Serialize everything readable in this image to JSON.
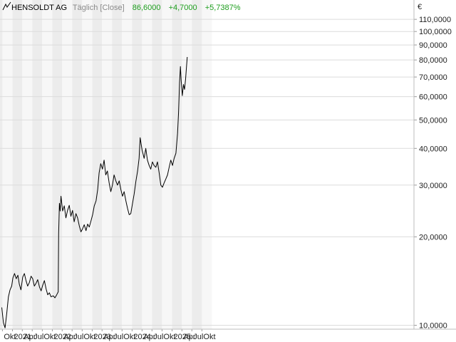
{
  "header": {
    "instrument": "HENSOLDT AG",
    "period_type": "Täglich [Close]",
    "last_price": "86,6000",
    "change_abs": "+4,7000",
    "change_pct": "+5,7387%"
  },
  "colors": {
    "line": "#000000",
    "positive": "#1e9e1e",
    "muted": "#8a8a8a",
    "band_dark": "#ececec",
    "band_light": "#f7f7f7",
    "grid": "#dcdcdc"
  },
  "chart_data": {
    "type": "line",
    "title": "HENSOLDT AG",
    "y_unit": "€",
    "y_scale": "log",
    "ylim": [
      9.7,
      128
    ],
    "x_ticks": [
      "Okt",
      "2021",
      "Apr",
      "Jul",
      "Okt",
      "2022",
      "Apr",
      "Jul",
      "Okt",
      "2023",
      "Apr",
      "Jul",
      "Okt",
      "2024",
      "Apr",
      "Jul",
      "Okt",
      "2025",
      "Apr",
      "Jul",
      "Okt"
    ],
    "y_ticks": [
      {
        "value": 110,
        "label": "110,0000"
      },
      {
        "value": 100,
        "label": "100,0000"
      },
      {
        "value": 90,
        "label": "90,0000"
      },
      {
        "value": 80,
        "label": "80,0000"
      },
      {
        "value": 70,
        "label": "70,0000"
      },
      {
        "value": 60,
        "label": "60,0000"
      },
      {
        "value": 50,
        "label": "50,0000"
      },
      {
        "value": 40,
        "label": "40,0000"
      },
      {
        "value": 30,
        "label": "30,0000"
      },
      {
        "value": 20,
        "label": "20,0000"
      },
      {
        "value": 10,
        "label": "10,0000"
      }
    ],
    "grid": true,
    "series": [
      {
        "points": [
          [
            "2020-09-25",
            11.5
          ],
          [
            "2020-10-10",
            10.2
          ],
          [
            "2020-10-25",
            9.8
          ],
          [
            "2020-11-10",
            11.0
          ],
          [
            "2020-11-25",
            12.5
          ],
          [
            "2020-12-10",
            13.2
          ],
          [
            "2020-12-25",
            13.6
          ],
          [
            "2021-01-05",
            14.5
          ],
          [
            "2021-01-20",
            15.0
          ],
          [
            "2021-02-05",
            14.4
          ],
          [
            "2021-02-20",
            14.8
          ],
          [
            "2021-03-05",
            13.8
          ],
          [
            "2021-03-20",
            13.2
          ],
          [
            "2021-04-05",
            14.6
          ],
          [
            "2021-04-20",
            15.0
          ],
          [
            "2021-05-05",
            14.2
          ],
          [
            "2021-05-20",
            13.6
          ],
          [
            "2021-06-05",
            14.0
          ],
          [
            "2021-06-20",
            14.7
          ],
          [
            "2021-07-05",
            14.4
          ],
          [
            "2021-07-20",
            13.6
          ],
          [
            "2021-08-05",
            13.9
          ],
          [
            "2021-08-20",
            14.3
          ],
          [
            "2021-09-05",
            13.5
          ],
          [
            "2021-09-20",
            13.1
          ],
          [
            "2021-10-05",
            13.7
          ],
          [
            "2021-10-20",
            14.2
          ],
          [
            "2021-11-05",
            13.3
          ],
          [
            "2021-11-20",
            12.7
          ],
          [
            "2021-12-05",
            12.9
          ],
          [
            "2021-12-20",
            12.5
          ],
          [
            "2022-01-10",
            12.6
          ],
          [
            "2022-01-25",
            12.4
          ],
          [
            "2022-02-10",
            12.7
          ],
          [
            "2022-02-24",
            13.0
          ],
          [
            "2022-02-28",
            20.5
          ],
          [
            "2022-03-07",
            26.0
          ],
          [
            "2022-03-14",
            24.5
          ],
          [
            "2022-03-21",
            27.5
          ],
          [
            "2022-04-05",
            24.5
          ],
          [
            "2022-04-20",
            25.5
          ],
          [
            "2022-05-05",
            23.2
          ],
          [
            "2022-05-20",
            24.6
          ],
          [
            "2022-06-05",
            25.6
          ],
          [
            "2022-06-20",
            23.5
          ],
          [
            "2022-07-05",
            24.6
          ],
          [
            "2022-07-20",
            22.5
          ],
          [
            "2022-08-05",
            24.0
          ],
          [
            "2022-08-20",
            23.2
          ],
          [
            "2022-09-05",
            21.8
          ],
          [
            "2022-09-20",
            20.8
          ],
          [
            "2022-10-05",
            21.3
          ],
          [
            "2022-10-20",
            22.0
          ],
          [
            "2022-11-05",
            21.0
          ],
          [
            "2022-11-20",
            22.1
          ],
          [
            "2022-12-05",
            21.6
          ],
          [
            "2022-12-20",
            22.6
          ],
          [
            "2023-01-05",
            23.8
          ],
          [
            "2023-01-20",
            25.5
          ],
          [
            "2023-02-05",
            26.5
          ],
          [
            "2023-02-20",
            29.0
          ],
          [
            "2023-03-05",
            33.0
          ],
          [
            "2023-03-20",
            35.5
          ],
          [
            "2023-04-05",
            34.0
          ],
          [
            "2023-04-20",
            36.5
          ],
          [
            "2023-05-05",
            32.5
          ],
          [
            "2023-05-20",
            33.5
          ],
          [
            "2023-06-05",
            30.5
          ],
          [
            "2023-06-20",
            28.5
          ],
          [
            "2023-07-05",
            30.0
          ],
          [
            "2023-07-20",
            32.5
          ],
          [
            "2023-08-05",
            31.0
          ],
          [
            "2023-08-20",
            30.0
          ],
          [
            "2023-09-05",
            31.0
          ],
          [
            "2023-09-20",
            29.0
          ],
          [
            "2023-10-05",
            27.5
          ],
          [
            "2023-10-20",
            28.5
          ],
          [
            "2023-11-05",
            26.5
          ],
          [
            "2023-11-20",
            25.0
          ],
          [
            "2023-12-05",
            23.8
          ],
          [
            "2023-12-20",
            24.0
          ],
          [
            "2024-01-05",
            26.0
          ],
          [
            "2024-01-20",
            28.0
          ],
          [
            "2024-02-05",
            31.0
          ],
          [
            "2024-02-20",
            33.5
          ],
          [
            "2024-03-05",
            37.0
          ],
          [
            "2024-03-15",
            43.5
          ],
          [
            "2024-04-01",
            39.5
          ],
          [
            "2024-04-20",
            37.0
          ],
          [
            "2024-05-05",
            40.0
          ],
          [
            "2024-05-20",
            36.5
          ],
          [
            "2024-06-05",
            35.0
          ],
          [
            "2024-06-20",
            34.0
          ],
          [
            "2024-07-05",
            36.0
          ],
          [
            "2024-07-20",
            35.0
          ],
          [
            "2024-08-05",
            34.5
          ],
          [
            "2024-08-20",
            36.0
          ],
          [
            "2024-09-05",
            33.0
          ],
          [
            "2024-09-20",
            30.0
          ],
          [
            "2024-10-05",
            29.5
          ],
          [
            "2024-10-20",
            30.5
          ],
          [
            "2024-11-05",
            31.5
          ],
          [
            "2024-11-20",
            32.5
          ],
          [
            "2024-12-05",
            34.5
          ],
          [
            "2024-12-20",
            36.5
          ],
          [
            "2025-01-05",
            35.0
          ],
          [
            "2025-01-20",
            37.0
          ],
          [
            "2025-02-05",
            38.5
          ],
          [
            "2025-02-20",
            45.0
          ],
          [
            "2025-03-01",
            53.0
          ],
          [
            "2025-03-10",
            67.0
          ],
          [
            "2025-03-18",
            76.0
          ],
          [
            "2025-03-25",
            68.0
          ],
          [
            "2025-04-05",
            60.5
          ],
          [
            "2025-04-15",
            66.0
          ],
          [
            "2025-04-25",
            63.5
          ],
          [
            "2025-05-05",
            69.0
          ],
          [
            "2025-05-12",
            75.0
          ],
          [
            "2025-05-20",
            81.9
          ]
        ]
      }
    ]
  }
}
